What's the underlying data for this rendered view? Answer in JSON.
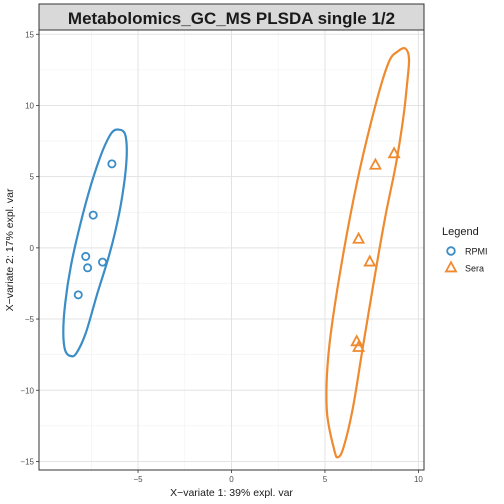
{
  "chart_data": {
    "type": "scatter",
    "title": "Metabolomics_GC_MS PLSDA single 1/2",
    "xlabel": "X−variate 1: 39% expl. var",
    "ylabel": "X−variate 2: 17% expl. var",
    "xlim": [
      -10.3,
      10.3
    ],
    "ylim": [
      -15.6,
      15.3
    ],
    "x_ticks": [
      -5,
      0,
      5,
      10
    ],
    "x_tick_labels": [
      "−5",
      "0",
      "5",
      "10"
    ],
    "y_ticks": [
      -15,
      -10,
      -5,
      0,
      5,
      10,
      15
    ],
    "y_tick_labels": [
      "−15",
      "−10",
      "−5",
      "0",
      "5",
      "10",
      "15"
    ],
    "grid": true,
    "legend": {
      "title": "Legend",
      "position": "right"
    },
    "series": [
      {
        "name": "RPMI",
        "color": "#3a8dc6",
        "marker": "circle",
        "points": [
          {
            "x": -6.4,
            "y": 5.9
          },
          {
            "x": -7.4,
            "y": 2.3
          },
          {
            "x": -7.8,
            "y": -0.6
          },
          {
            "x": -7.7,
            "y": -1.4
          },
          {
            "x": -6.9,
            "y": -1.0
          },
          {
            "x": -8.2,
            "y": -3.3
          }
        ],
        "ellipse": [
          {
            "x": -6.0,
            "y": 8.3
          },
          {
            "x": -5.7,
            "y": 8.0
          },
          {
            "x": -5.6,
            "y": 6.8
          },
          {
            "x": -5.7,
            "y": 5.0
          },
          {
            "x": -6.0,
            "y": 2.5
          },
          {
            "x": -6.5,
            "y": -0.3
          },
          {
            "x": -7.2,
            "y": -3.3
          },
          {
            "x": -7.8,
            "y": -6.0
          },
          {
            "x": -8.3,
            "y": -7.4
          },
          {
            "x": -8.6,
            "y": -7.6
          },
          {
            "x": -8.9,
            "y": -7.2
          },
          {
            "x": -9.0,
            "y": -5.9
          },
          {
            "x": -8.9,
            "y": -3.9
          },
          {
            "x": -8.6,
            "y": -1.3
          },
          {
            "x": -8.1,
            "y": 1.6
          },
          {
            "x": -7.5,
            "y": 4.5
          },
          {
            "x": -6.9,
            "y": 6.8
          },
          {
            "x": -6.4,
            "y": 8.1
          }
        ]
      },
      {
        "name": "Sera",
        "color": "#ef8a2e",
        "marker": "triangle",
        "points": [
          {
            "x": 8.7,
            "y": 6.6
          },
          {
            "x": 7.7,
            "y": 5.8
          },
          {
            "x": 6.8,
            "y": 0.6
          },
          {
            "x": 7.4,
            "y": -1.0
          },
          {
            "x": 6.7,
            "y": -6.6
          },
          {
            "x": 6.8,
            "y": -7.0
          }
        ],
        "ellipse": [
          {
            "x": 8.9,
            "y": 13.8
          },
          {
            "x": 9.3,
            "y": 14.0
          },
          {
            "x": 9.5,
            "y": 13.3
          },
          {
            "x": 9.4,
            "y": 11.6
          },
          {
            "x": 9.2,
            "y": 9.2
          },
          {
            "x": 8.8,
            "y": 5.9
          },
          {
            "x": 8.2,
            "y": 2.0
          },
          {
            "x": 7.6,
            "y": -2.5
          },
          {
            "x": 7.0,
            "y": -7.2
          },
          {
            "x": 6.5,
            "y": -11.2
          },
          {
            "x": 6.0,
            "y": -14.0
          },
          {
            "x": 5.7,
            "y": -14.7
          },
          {
            "x": 5.5,
            "y": -14.2
          },
          {
            "x": 5.1,
            "y": -11.4
          },
          {
            "x": 5.2,
            "y": -7.3
          },
          {
            "x": 5.8,
            "y": -1.8
          },
          {
            "x": 6.7,
            "y": 4.5
          },
          {
            "x": 7.7,
            "y": 10.0
          },
          {
            "x": 8.4,
            "y": 13.0
          }
        ]
      }
    ]
  }
}
